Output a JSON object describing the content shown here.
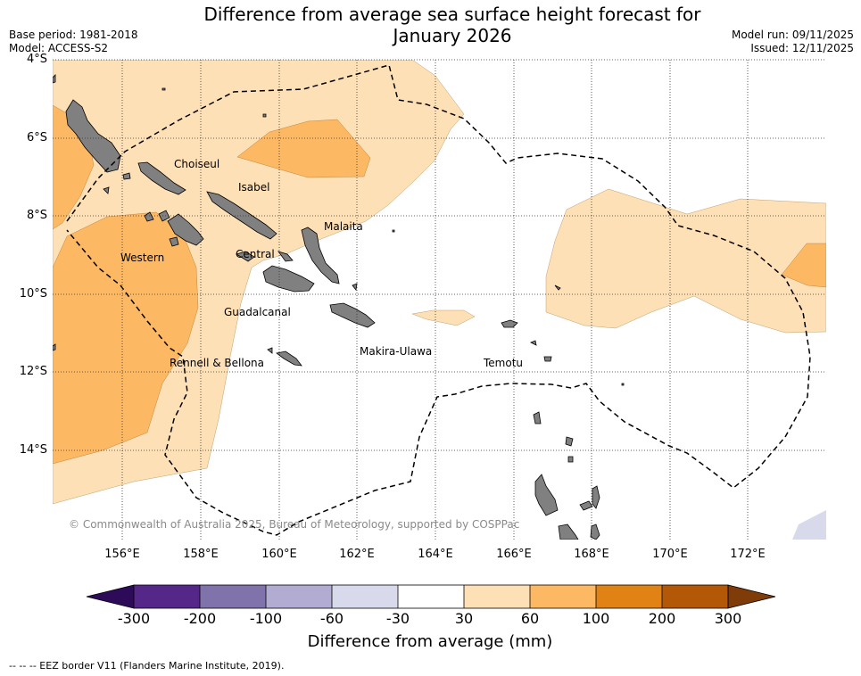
{
  "title_line1": "Difference from average sea surface height forecast for",
  "title_line2": "January 2026",
  "base_period": "Base period: 1981-2018",
  "model": "Model: ACCESS-S2",
  "model_run": "Model run: 09/11/2025",
  "issued": "Issued: 12/11/2025",
  "lat_labels": [
    "4°S",
    "6°S",
    "8°S",
    "10°S",
    "12°S",
    "14°S"
  ],
  "lon_labels": [
    "156°E",
    "158°E",
    "160°E",
    "162°E",
    "164°E",
    "166°E",
    "168°E",
    "170°E",
    "172°E"
  ],
  "regions": [
    "Choiseul",
    "Isabel",
    "Malaita",
    "Western",
    "Central",
    "Guadalcanal",
    "Rennell & Bellona",
    "Makira-Ulawa",
    "Temotu"
  ],
  "copyright": "© Commonwealth of Australia 2025, Bureau of Meteorology, supported by COSPPac",
  "colorbar": {
    "title": "Difference from average (mm)",
    "ticks": [
      "-300",
      "-200",
      "-100",
      "-60",
      "-30",
      "30",
      "60",
      "100",
      "200",
      "300"
    ],
    "colors": [
      "#2d0b59",
      "#542788",
      "#8073ac",
      "#b2abd2",
      "#d8daeb",
      "#ffffff",
      "#fee0b6",
      "#fdb863",
      "#e08214",
      "#b35806",
      "#7f3b08"
    ]
  },
  "legend": "--  --  -- EEZ border V11 (Flanders Marine Institute, 2019)."
}
